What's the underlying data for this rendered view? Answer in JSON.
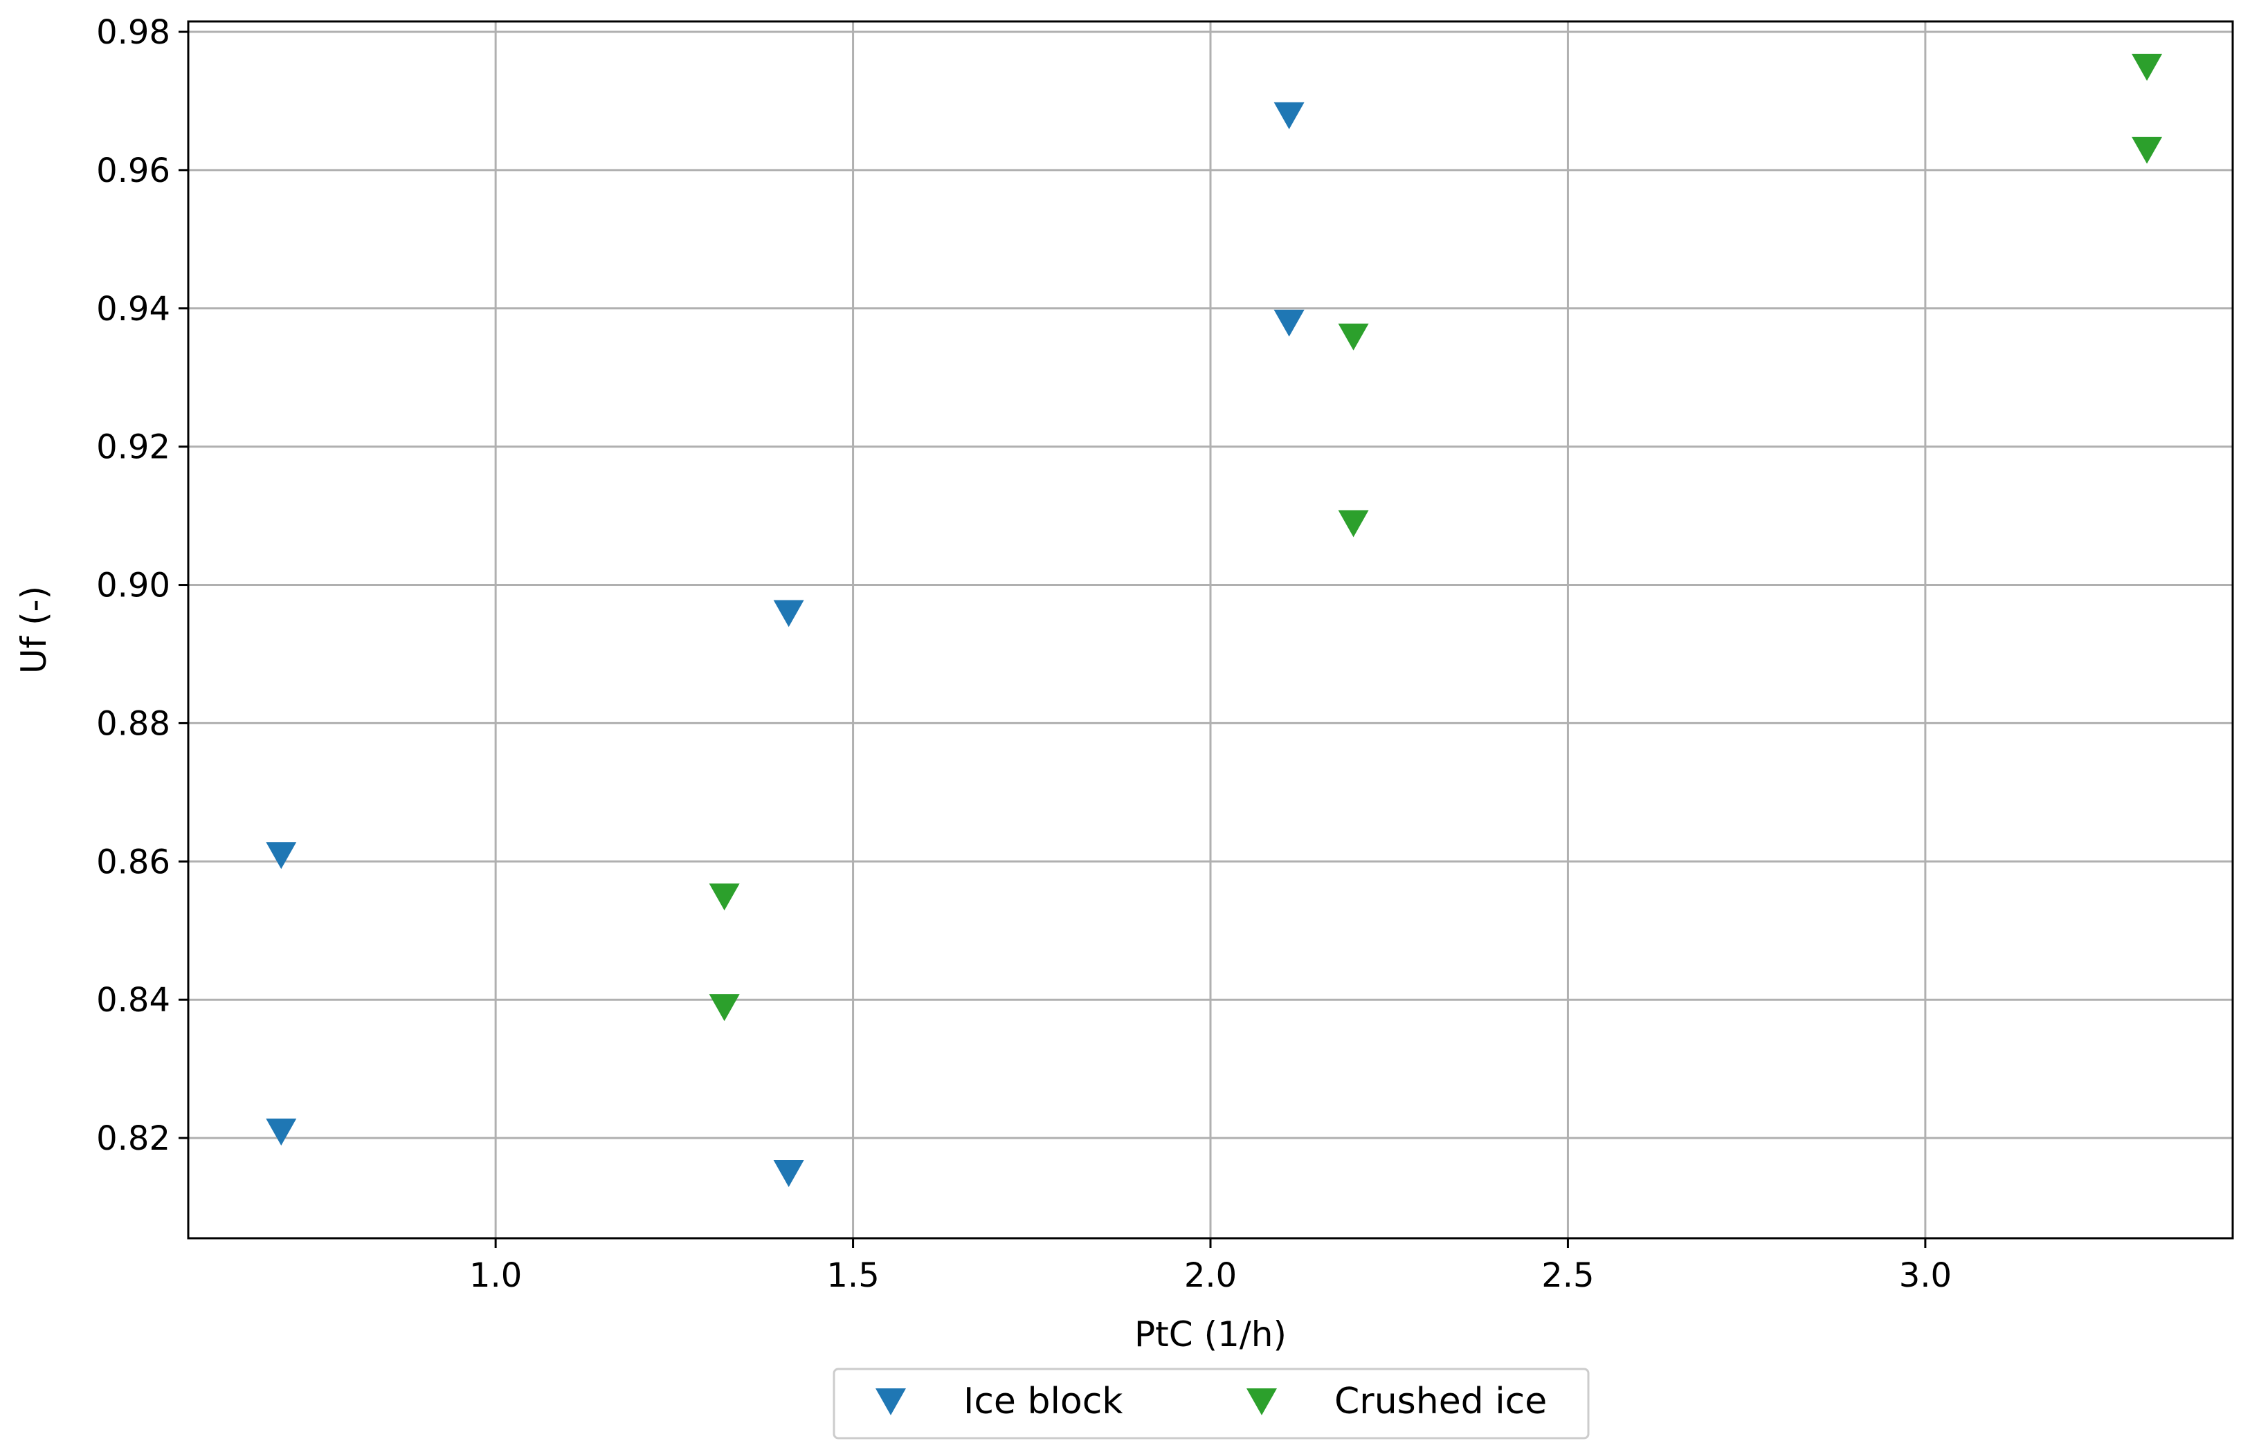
{
  "chart_data": {
    "type": "scatter",
    "title": "",
    "xlabel": "PtC (1/h)",
    "ylabel": "Uf (-)",
    "xlim": [
      0.57,
      3.43
    ],
    "ylim": [
      0.8055,
      0.9815
    ],
    "xticks": [
      "1.0",
      "1.5",
      "2.0",
      "2.5",
      "3.0"
    ],
    "yticks": [
      "0.82",
      "0.84",
      "0.86",
      "0.88",
      "0.90",
      "0.92",
      "0.94",
      "0.96",
      "0.98"
    ],
    "grid": true,
    "legend_position": "bottom-center-outside",
    "marker": "triangle-down",
    "series": [
      {
        "name": "Ice block",
        "color": "#1f77b4",
        "points": [
          {
            "x": 0.7,
            "y": 0.861
          },
          {
            "x": 0.7,
            "y": 0.821
          },
          {
            "x": 1.41,
            "y": 0.896
          },
          {
            "x": 1.41,
            "y": 0.815
          },
          {
            "x": 2.11,
            "y": 0.968
          },
          {
            "x": 2.11,
            "y": 0.938
          }
        ]
      },
      {
        "name": "Crushed ice",
        "color": "#2ca02c",
        "points": [
          {
            "x": 1.32,
            "y": 0.855
          },
          {
            "x": 1.32,
            "y": 0.839
          },
          {
            "x": 2.2,
            "y": 0.936
          },
          {
            "x": 2.2,
            "y": 0.909
          },
          {
            "x": 3.31,
            "y": 0.975
          },
          {
            "x": 3.31,
            "y": 0.963
          }
        ]
      }
    ]
  }
}
